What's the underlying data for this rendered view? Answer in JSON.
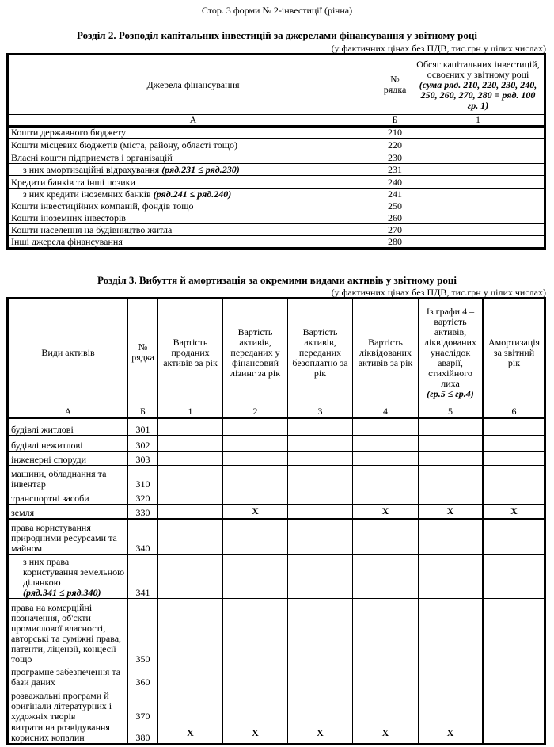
{
  "page_header": "Стор. 3 форми № 2-інвестиції (річна)",
  "section2": {
    "title": "Розділ 2. Розподіл капітальних інвестицій за джерелами фінансування у звітному році",
    "units": "(у фактичних цінах без ПДВ, тис.грн у цілих числах)",
    "headers": {
      "source": "Джерела фінансування",
      "row_no": "№ рядка",
      "volume": "Обсяг капітальних інвестицій, освоєних у звітному році",
      "volume_note": "(сума ряд. 210, 220, 230, 240, 250, 260, 270, 280 = ряд. 100 гр. 1)"
    },
    "col_codes": [
      "А",
      "Б",
      "1"
    ],
    "rows": [
      {
        "label": "Кошти державного бюджету",
        "code": "210"
      },
      {
        "label": "Кошти місцевих бюджетів (міста, району, області тощо)",
        "code": "220"
      },
      {
        "label": "Власні кошти підприємств і організацій",
        "code": "230"
      },
      {
        "label": "з них амортизаційні відрахування",
        "note": "(ряд.231 ≤ ряд.230)",
        "code": "231",
        "indent": true
      },
      {
        "label": "Кредити банків та інші позики",
        "code": "240"
      },
      {
        "label": "з них кредити іноземних банків",
        "note": "(ряд.241 ≤ ряд.240)",
        "code": "241",
        "indent": true
      },
      {
        "label": "Кошти інвестиційних компаній, фондів тощо",
        "code": "250"
      },
      {
        "label": "Кошти іноземних інвесторів",
        "code": "260"
      },
      {
        "label": "Кошти населення на будівництво житла",
        "code": "270"
      },
      {
        "label": "Інші джерела фінансування",
        "code": "280"
      }
    ]
  },
  "section3": {
    "title": "Розділ 3.  Вибуття й амортизація за окремими видами активів у звітному році",
    "units": "(у фактичних цінах без ПДВ, тис.грн у цілих числах)",
    "headers": [
      "Види активів",
      "№ рядка",
      "Вартість проданих активів за рік",
      "Вартість активів, переданих у фінансовий лізинг за рік",
      "Вартість активів, переданих безоплатно за рік",
      "Вартість ліквідованих активів за рік",
      "Із графи 4 – вартість активів, ліквідованих унаслідок аварії, стихійного лиха",
      "Амортизація за звітний рік"
    ],
    "header5_note": "(гр.5 ≤ гр.4)",
    "col_codes": [
      "А",
      "Б",
      "1",
      "2",
      "3",
      "4",
      "5",
      "6"
    ],
    "rows": [
      {
        "label": "будівлі житлові",
        "code": "301",
        "x": []
      },
      {
        "label": "будівлі нежитлові",
        "code": "302",
        "x": []
      },
      {
        "label": "інженерні споруди",
        "code": "303",
        "x": []
      },
      {
        "label": "машини, обладнання та інвентар",
        "code": "310",
        "x": []
      },
      {
        "label": "транспортні засоби",
        "code": "320",
        "x": []
      },
      {
        "label": "земля",
        "code": "330",
        "x": [
          2,
          4,
          5,
          6
        ]
      },
      {
        "label": "права користування природними ресурсами та майном",
        "code": "340",
        "x": []
      },
      {
        "label": "з них права користування земельною ділянкою",
        "note": "(ряд.341 ≤ ряд.340)",
        "code": "341",
        "indent": true,
        "x": []
      },
      {
        "label": "права на комерційні позначення, об'єкти промислової власності, авторські та суміжні права, патенти, ліцензії, концесії тощо",
        "code": "350",
        "x": []
      },
      {
        "label": "програмне забезпечення та бази даних",
        "code": "360",
        "x": []
      },
      {
        "label": "розважальні програми й оригінали літературних і художніх творів",
        "code": "370",
        "x": []
      },
      {
        "label": "витрати на розвідування корисних копалин",
        "code": "380",
        "x": [
          1,
          2,
          3,
          4,
          5
        ]
      }
    ],
    "mark": "Х"
  }
}
